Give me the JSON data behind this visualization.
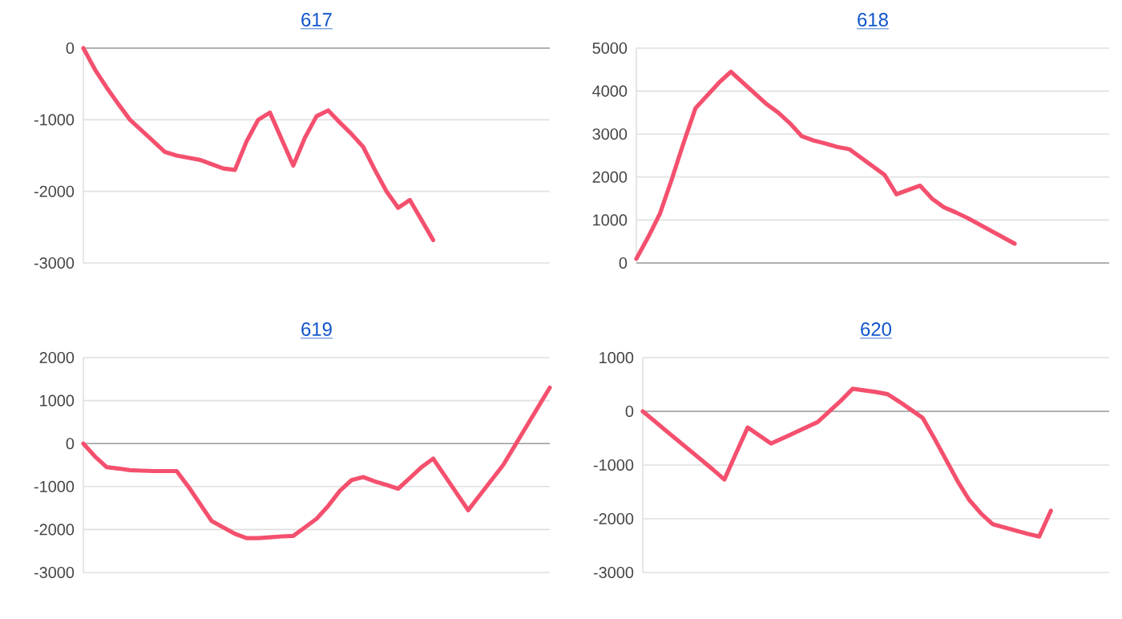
{
  "chart_data": [
    {
      "type": "line",
      "title": "617",
      "categories": [
        null,
        null,
        null,
        null,
        null,
        null,
        null,
        null,
        null,
        null,
        null,
        null,
        null,
        null,
        null,
        null,
        null,
        null,
        null,
        null,
        null,
        null,
        null,
        null,
        null,
        null,
        null,
        null,
        null,
        null,
        null,
        null,
        null,
        null,
        null,
        null,
        null,
        null,
        null,
        null,
        null
      ],
      "ylim": [
        -3000,
        0
      ],
      "yticks": [
        -3000,
        -2000,
        -1000,
        0
      ],
      "grid": "y",
      "series": [
        {
          "color": "#f4506e",
          "values": [
            0,
            -300,
            -550,
            -780,
            -1000,
            -1150,
            -1300,
            -1450,
            -1500,
            -1530,
            -1560,
            -1620,
            -1680,
            -1700,
            -1300,
            -1000,
            -900,
            -1270,
            -1640,
            -1250,
            -950,
            -870,
            -1040,
            -1200,
            -1380,
            -1700,
            -2000,
            -2230,
            -2120,
            -2400,
            -2680,
            null,
            null,
            null,
            null,
            null,
            null,
            null,
            null,
            null,
            null
          ]
        }
      ]
    },
    {
      "type": "line",
      "title": "618",
      "categories": [
        null,
        null,
        null,
        null,
        null,
        null,
        null,
        null,
        null,
        null,
        null,
        null,
        null,
        null,
        null,
        null,
        null,
        null,
        null,
        null,
        null,
        null,
        null,
        null,
        null,
        null,
        null,
        null,
        null,
        null,
        null,
        null,
        null,
        null,
        null,
        null,
        null,
        null,
        null,
        null,
        null
      ],
      "ylim": [
        0,
        5000
      ],
      "yticks": [
        0,
        1000,
        2000,
        3000,
        4000,
        5000
      ],
      "grid": "y",
      "series": [
        {
          "color": "#f4506e",
          "values": [
            100,
            600,
            1150,
            1950,
            2800,
            3600,
            3900,
            4200,
            4450,
            4200,
            3950,
            3700,
            3500,
            3250,
            2950,
            2850,
            2780,
            2700,
            2650,
            2450,
            2250,
            2050,
            1600,
            1700,
            1800,
            1500,
            1300,
            1180,
            1050,
            900,
            750,
            600,
            450,
            null,
            null,
            null,
            null,
            null,
            null,
            null,
            null
          ]
        }
      ]
    },
    {
      "type": "line",
      "title": "619",
      "categories": [
        null,
        null,
        null,
        null,
        null,
        null,
        null,
        null,
        null,
        null,
        null,
        null,
        null,
        null,
        null,
        null,
        null,
        null,
        null,
        null,
        null,
        null,
        null,
        null,
        null,
        null,
        null,
        null,
        null,
        null,
        null,
        null,
        null,
        null,
        null,
        null,
        null,
        null,
        null,
        null,
        null
      ],
      "ylim": [
        -3000,
        2000
      ],
      "yticks": [
        -3000,
        -2000,
        -1000,
        0,
        1000,
        2000
      ],
      "grid": "y",
      "series": [
        {
          "color": "#f4506e",
          "values": [
            0,
            -300,
            -550,
            -580,
            -620,
            -630,
            -640,
            -640,
            -640,
            -1000,
            -1400,
            -1800,
            -1950,
            -2100,
            -2200,
            -2200,
            -2180,
            -2160,
            -2150,
            -1950,
            -1750,
            -1450,
            -1100,
            -850,
            -780,
            -880,
            -960,
            -1050,
            -800,
            -550,
            -350,
            -750,
            -1150,
            -1550,
            -1200,
            -850,
            -500,
            -50,
            400,
            850,
            1300
          ]
        }
      ]
    },
    {
      "type": "line",
      "title": "620",
      "categories": [
        null,
        null,
        null,
        null,
        null,
        null,
        null,
        null,
        null,
        null,
        null,
        null,
        null,
        null,
        null,
        null,
        null,
        null,
        null,
        null,
        null,
        null,
        null,
        null,
        null,
        null,
        null,
        null,
        null,
        null,
        null,
        null,
        null,
        null,
        null,
        null,
        null,
        null,
        null,
        null,
        null
      ],
      "ylim": [
        -3000,
        1000
      ],
      "yticks": [
        -3000,
        -2000,
        -1000,
        0,
        1000
      ],
      "grid": "y",
      "series": [
        {
          "color": "#f4506e",
          "values": [
            0,
            -180,
            -360,
            -540,
            -720,
            -900,
            -1080,
            -1270,
            -780,
            -300,
            -450,
            -600,
            -500,
            -400,
            -300,
            -200,
            0,
            200,
            420,
            390,
            360,
            320,
            180,
            30,
            -120,
            -500,
            -900,
            -1300,
            -1650,
            -1900,
            -2100,
            -2160,
            -2220,
            -2280,
            -2330,
            -1850,
            null,
            null,
            null,
            null,
            null
          ]
        }
      ]
    }
  ]
}
